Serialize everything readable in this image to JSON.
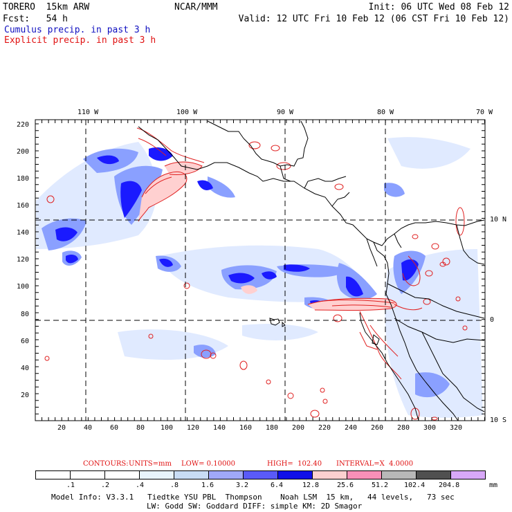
{
  "header": {
    "model": "TORERO  15km ARW",
    "org": "NCAR/MMM",
    "init": "Init: 06 UTC Wed 08 Feb 12",
    "fcst": "Fcst:   54 h",
    "valid": "Valid: 12 UTC Fri 10 Feb 12 (06 CST Fri 10 Feb 12)"
  },
  "legend": {
    "cumulus": "Cumulus precip. in past 3 h",
    "explicit": "Explicit precip. in past 3 h"
  },
  "map": {
    "lon_labels": [
      "110 W",
      "100 W",
      "90 W",
      "80 W",
      "70 W"
    ],
    "lat_labels": [
      "10 N",
      "0",
      "10 S"
    ],
    "x_ticks": [
      "20",
      "40",
      "60",
      "80",
      "100",
      "120",
      "140",
      "160",
      "180",
      "200",
      "220",
      "240",
      "260",
      "280",
      "300",
      "320"
    ],
    "y_ticks": [
      "220",
      "200",
      "180",
      "160",
      "140",
      "120",
      "100",
      "80",
      "60",
      "40",
      "20"
    ],
    "colors": {
      "cumulus_dark": "#1a1aff",
      "cumulus_mid": "#5a5aff",
      "cumulus_light": "#a0b4ff",
      "cumulus_faint": "#dde8ff",
      "explicit_fill": "#ffd0d0",
      "explicit_contour": "#e02020"
    }
  },
  "contours": {
    "label": "CONTOURS:",
    "units": "UNITS=mm",
    "low": "LOW= 0.10000",
    "high": "HIGH=  102.40",
    "interval": "INTERVAL=X  4.0000"
  },
  "colorbar": {
    "labels": [
      ".1",
      ".2",
      ".4",
      ".8",
      "1.6",
      "3.2",
      "6.4",
      "12.8",
      "25.6",
      "51.2",
      "102.4",
      "204.8"
    ],
    "unit": "mm",
    "colors": [
      "#ffffff",
      "#ffffff",
      "#ffffff",
      "#e8f4fc",
      "#c8dcf4",
      "#a0a8f8",
      "#5a5af8",
      "#1010e8",
      "#fcd0d0",
      "#f890b8",
      "#b8b8b8",
      "#505050",
      "#d8a8f8"
    ]
  },
  "footer": {
    "line1": "Model Info: V3.3.1   Tiedtke YSU PBL  Thompson    Noah LSM  15 km,   44 levels,   73 sec",
    "line2": "LW: Godd SW: Goddard DIFF: simple KM: 2D Smagor"
  }
}
